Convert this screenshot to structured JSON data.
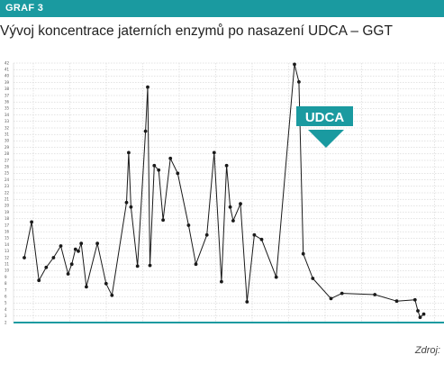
{
  "header": {
    "label": "GRAF 3"
  },
  "title": "Vývoj koncentrace jaterních enzymů po nasazení UDCA – GGT",
  "source": "Zdroj:",
  "annotation": {
    "text": "UDCA"
  },
  "colors": {
    "accent": "#1a9aa0",
    "line": "#1a1a1a",
    "grid": "#c8c8c8"
  },
  "chart_data": {
    "type": "line",
    "title": "Vývoj koncentrace jaterních enzymů po nasazení UDCA – GGT",
    "xlabel": "",
    "ylabel": "",
    "ylim": [
      2,
      42
    ],
    "yticks": [
      2,
      3,
      4,
      5,
      6,
      7,
      8,
      9,
      10,
      11,
      12,
      13,
      14,
      15,
      16,
      17,
      18,
      19,
      20,
      21,
      22,
      23,
      24,
      25,
      26,
      27,
      28,
      29,
      30,
      31,
      32,
      33,
      34,
      35,
      36,
      37,
      38,
      39,
      40,
      41,
      42
    ],
    "grid": true,
    "legend": "none",
    "series": [
      {
        "name": "",
        "points": [
          [
            0,
            12
          ],
          [
            1,
            17.5
          ],
          [
            2,
            8.5
          ],
          [
            3,
            10.5
          ],
          [
            4,
            12
          ],
          [
            5,
            13.8
          ],
          [
            6,
            9.5
          ],
          [
            6.5,
            11
          ],
          [
            7,
            13.3
          ],
          [
            7.4,
            13
          ],
          [
            7.8,
            14.2
          ],
          [
            8.5,
            7.5
          ],
          [
            10,
            14.2
          ],
          [
            11.2,
            8
          ],
          [
            12,
            6.2
          ],
          [
            14,
            20.5
          ],
          [
            14.3,
            28.2
          ],
          [
            14.6,
            19.8
          ],
          [
            15.5,
            10.7
          ],
          [
            16.6,
            31.5
          ],
          [
            16.9,
            38.3
          ],
          [
            17.2,
            10.8
          ],
          [
            17.8,
            26.2
          ],
          [
            18.4,
            25.5
          ],
          [
            19,
            17.8
          ],
          [
            20,
            27.3
          ],
          [
            21,
            25
          ],
          [
            22.5,
            17
          ],
          [
            23.5,
            11
          ],
          [
            25,
            15.5
          ],
          [
            26,
            28.2
          ],
          [
            27,
            8.3
          ],
          [
            27.7,
            26.2
          ],
          [
            28.2,
            19.8
          ],
          [
            28.6,
            17.7
          ],
          [
            29.6,
            20.3
          ],
          [
            30.5,
            5.2
          ],
          [
            31.5,
            15.5
          ],
          [
            32.5,
            14.8
          ],
          [
            34.5,
            9
          ],
          [
            37,
            41.8
          ],
          [
            37.6,
            39.1
          ],
          [
            38.2,
            12.6
          ],
          [
            39.5,
            8.8
          ],
          [
            42,
            5.7
          ],
          [
            43.5,
            6.5
          ],
          [
            48,
            6.3
          ],
          [
            51,
            5.3
          ],
          [
            53.5,
            5.5
          ],
          [
            53.9,
            3.8
          ],
          [
            54.2,
            2.8
          ],
          [
            54.7,
            3.3
          ]
        ]
      }
    ]
  }
}
